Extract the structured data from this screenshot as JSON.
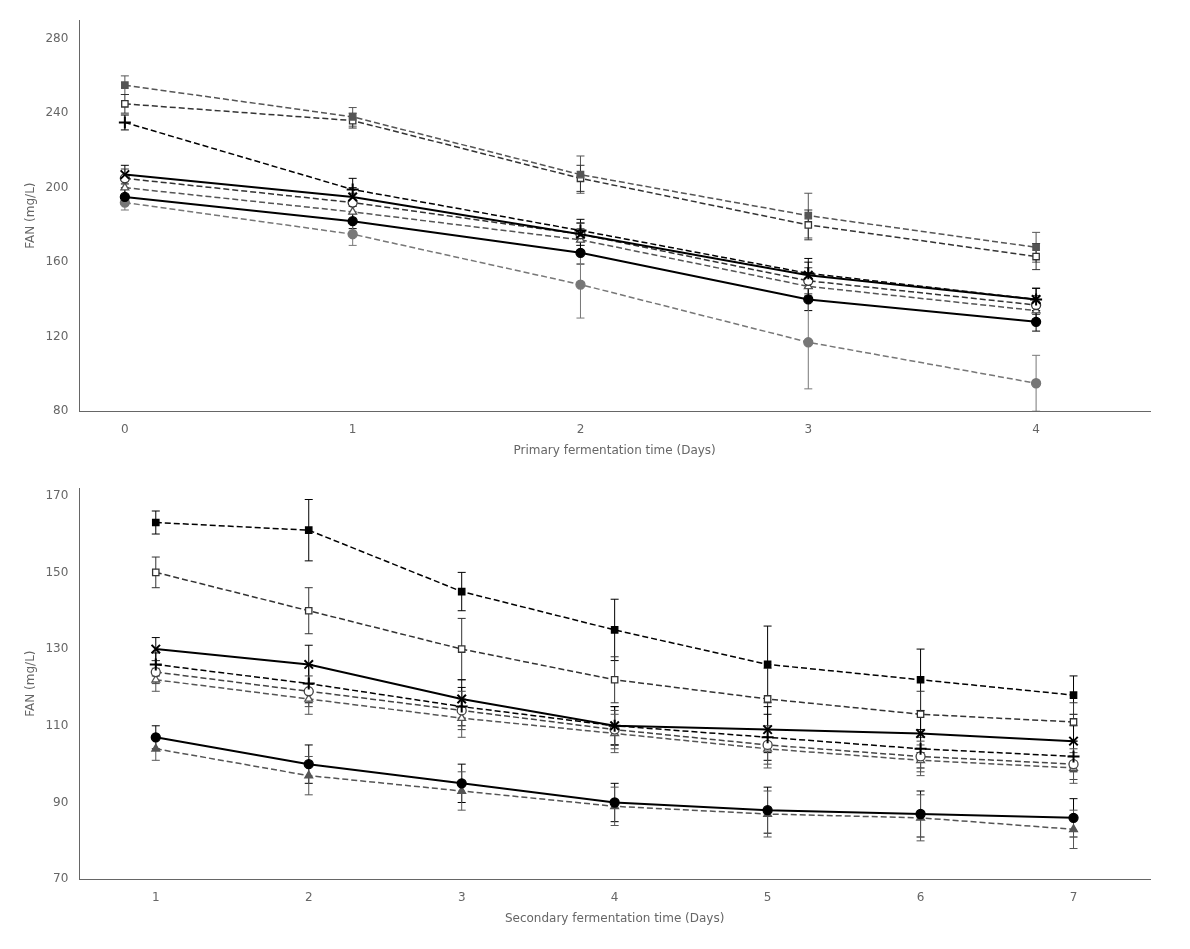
{
  "chart_data": [
    {
      "type": "line",
      "x_label": "Primary fermentation time (Days)",
      "y_label": "FAN (mg/L)",
      "x": [
        0,
        1,
        2,
        3,
        4
      ],
      "xlim": [
        -0.2,
        4.5
      ],
      "ylim": [
        80,
        290
      ],
      "xticks": [
        0,
        1,
        2,
        3,
        4
      ],
      "yticks": [
        80,
        120,
        160,
        200,
        240,
        280
      ],
      "grid": false,
      "series": [
        {
          "values": [
            255,
            238,
            207,
            185,
            168
          ],
          "errors": [
            5,
            5,
            10,
            12,
            8
          ],
          "color": "#555555",
          "marker": "square",
          "line_style": "dashed"
        },
        {
          "values": [
            245,
            236,
            205,
            180,
            163
          ],
          "errors": [
            5,
            4,
            7,
            8,
            7
          ],
          "color": "#333333",
          "marker": "open_square",
          "line_style": "dashed"
        },
        {
          "values": [
            235,
            199,
            177,
            154,
            140
          ],
          "errors": [
            4,
            6,
            6,
            8,
            6
          ],
          "color": "#000000",
          "marker": "plus",
          "line_style": "dashed"
        },
        {
          "values": [
            207,
            195,
            175,
            153,
            140
          ],
          "errors": [
            5,
            5,
            6,
            7,
            6
          ],
          "color": "#000000",
          "marker": "x",
          "line_style": "solid"
        },
        {
          "values": [
            205,
            192,
            175,
            150,
            137
          ],
          "errors": [
            5,
            5,
            6,
            7,
            5
          ],
          "color": "#333333",
          "marker": "open_circle",
          "line_style": "dashed"
        },
        {
          "values": [
            200,
            187,
            172,
            147,
            134
          ],
          "errors": [
            4,
            5,
            6,
            7,
            5
          ],
          "color": "#555555",
          "marker": "open_triangle",
          "line_style": "dashed"
        },
        {
          "values": [
            195,
            182,
            165,
            140,
            128
          ],
          "errors": [
            4,
            4,
            6,
            6,
            5
          ],
          "color": "#000000",
          "marker": "circle",
          "line_style": "solid"
        },
        {
          "values": [
            192,
            175,
            148,
            117,
            95
          ],
          "errors": [
            4,
            6,
            18,
            25,
            15
          ],
          "color": "#777777",
          "marker": "circle",
          "line_style": "dashed"
        }
      ]
    },
    {
      "type": "line",
      "x_label": "Secondary fermentation time (Days)",
      "y_label": "FAN (mg/L)",
      "x": [
        1,
        2,
        3,
        4,
        5,
        6,
        7
      ],
      "xlim": [
        0.5,
        7.5
      ],
      "ylim": [
        70,
        172
      ],
      "xticks": [
        1,
        2,
        3,
        4,
        5,
        6,
        7
      ],
      "yticks": [
        70,
        90,
        110,
        130,
        150,
        170
      ],
      "grid": false,
      "series": [
        {
          "values": [
            163,
            161,
            145,
            135,
            126,
            122,
            118
          ],
          "errors": [
            3,
            8,
            5,
            8,
            10,
            8,
            5
          ],
          "color": "#000000",
          "marker": "square",
          "line_style": "dashed"
        },
        {
          "values": [
            150,
            140,
            130,
            122,
            117,
            113,
            111
          ],
          "errors": [
            4,
            6,
            8,
            6,
            8,
            6,
            5
          ],
          "color": "#333333",
          "marker": "open_square",
          "line_style": "dashed"
        },
        {
          "values": [
            130,
            126,
            117,
            110,
            109,
            108,
            106
          ],
          "errors": [
            3,
            5,
            5,
            5,
            6,
            5,
            4
          ],
          "color": "#000000",
          "marker": "x",
          "line_style": "solid"
        },
        {
          "values": [
            126,
            121,
            115,
            110,
            107,
            104,
            102
          ],
          "errors": [
            3,
            5,
            5,
            5,
            6,
            5,
            4
          ],
          "color": "#000000",
          "marker": "plus",
          "line_style": "dashed"
        },
        {
          "values": [
            124,
            119,
            114,
            109,
            105,
            102,
            100
          ],
          "errors": [
            3,
            4,
            5,
            5,
            5,
            4,
            4
          ],
          "color": "#444444",
          "marker": "open_circle",
          "line_style": "dashed"
        },
        {
          "values": [
            122,
            117,
            112,
            108,
            104,
            101,
            99
          ],
          "errors": [
            3,
            4,
            5,
            5,
            5,
            4,
            4
          ],
          "color": "#555555",
          "marker": "open_triangle",
          "line_style": "dashed"
        },
        {
          "values": [
            107,
            100,
            95,
            90,
            88,
            87,
            86
          ],
          "errors": [
            3,
            5,
            5,
            5,
            6,
            6,
            5
          ],
          "color": "#000000",
          "marker": "circle",
          "line_style": "solid"
        },
        {
          "values": [
            104,
            97,
            93,
            89,
            87,
            86,
            83
          ],
          "errors": [
            3,
            5,
            5,
            5,
            6,
            6,
            5
          ],
          "color": "#555555",
          "marker": "triangle",
          "line_style": "dashed"
        }
      ]
    }
  ]
}
